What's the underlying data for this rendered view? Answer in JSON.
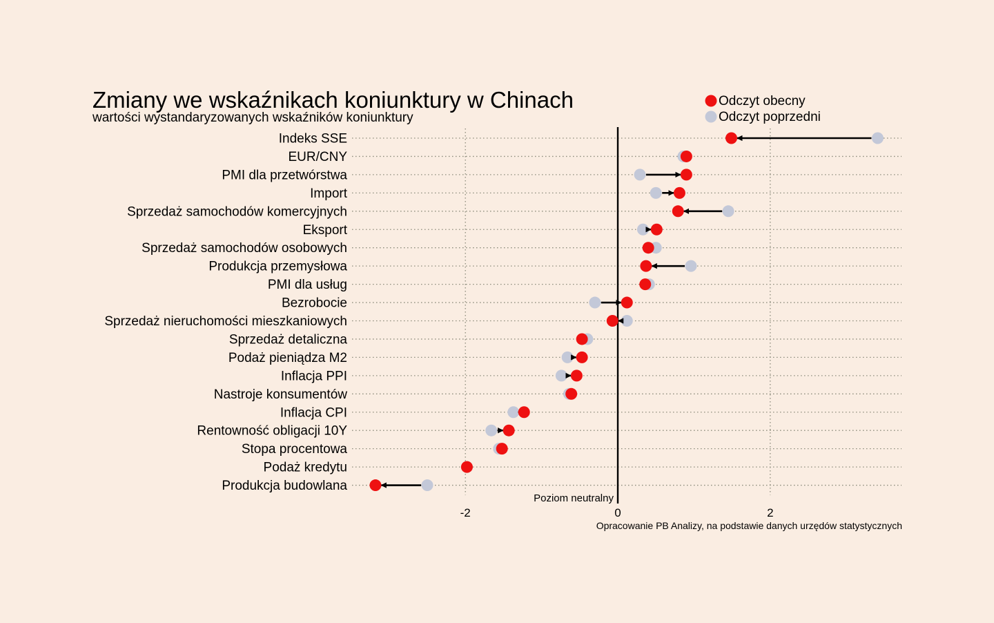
{
  "chart_data": {
    "type": "dumbbell",
    "title": "Zmiany we wskaźnikach koniunktury w Chinach",
    "subtitle": "wartości wystandaryzowanych wskaźników koniunktury",
    "source": "Opracowanie PB Analizy, na podstawie danych urzędów statystycznych",
    "neutral_label": "Poziom neutralny",
    "xlim": [
      -3.4,
      3.7
    ],
    "xticks": [
      -2,
      0,
      2
    ],
    "xtick_labels": [
      "-2",
      "0",
      "2"
    ],
    "grid": true,
    "legend": {
      "placement": "top-right",
      "current_label": "Odczyt obecny",
      "previous_label": "Odczyt poprzedni"
    },
    "colors": {
      "current": "#ee1111",
      "previous": "#c3c8d8",
      "arrow": "#000000",
      "grid": "#8a8a7a",
      "background": "#faede2"
    },
    "categories": [
      "Indeks SSE",
      "EUR/CNY",
      "PMI dla przetwórstwa",
      "Import",
      "Sprzedaż samochodów komercyjnych",
      "Eksport",
      "Sprzedaż samochodów osobowych",
      "Produkcja przemysłowa",
      "PMI dla usług",
      "Bezrobocie",
      "Sprzedaż nieruchomości mieszkaniowych",
      "Sprzedaż detaliczna",
      "Podaż pieniądza M2",
      "Inflacja PPI",
      "Nastroje konsumentów",
      "Inflacja CPI",
      "Rentowność obligacji 10Y",
      "Stopa procentowa",
      "Podaż kredytu",
      "Produkcja budowlana"
    ],
    "series": [
      {
        "name": "Odczyt obecny",
        "values": [
          1.49,
          0.9,
          0.9,
          0.81,
          0.79,
          0.51,
          0.4,
          0.37,
          0.36,
          0.12,
          -0.07,
          -0.47,
          -0.47,
          -0.54,
          -0.61,
          -1.23,
          -1.43,
          -1.52,
          -1.98,
          -3.18
        ]
      },
      {
        "name": "Odczyt poprzedni",
        "values": [
          3.41,
          0.86,
          0.29,
          0.5,
          1.45,
          0.33,
          0.5,
          0.96,
          0.41,
          -0.3,
          0.12,
          -0.4,
          -0.66,
          -0.74,
          -0.64,
          -1.37,
          -1.66,
          -1.56,
          -1.98,
          -2.5
        ]
      }
    ]
  }
}
